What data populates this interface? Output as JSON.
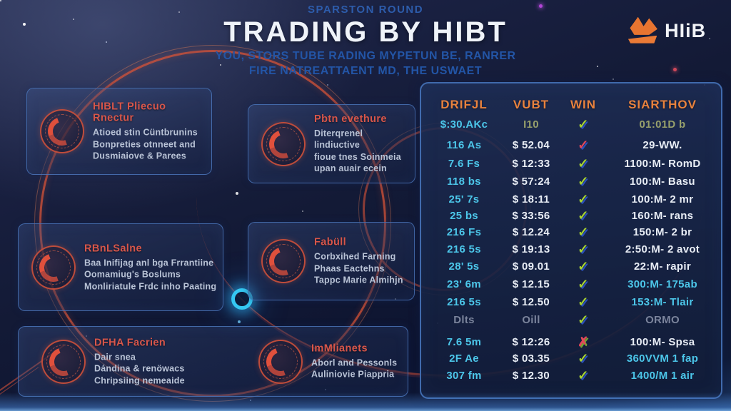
{
  "header": {
    "kicker": "SPARSTON ROUND",
    "title": "TRADING BY HIBT",
    "subtitle1": "YOU, STORS TUBE RADING MYPETUN BE, RANRER",
    "subtitle2": "FIRE NATREATTAENT MD, THE USWAET"
  },
  "logo": {
    "text": "HIiB",
    "dot": "."
  },
  "colors": {
    "accent_orange": "#e8823e",
    "card_title_red": "#d8564a",
    "value_cyan": "#4cc6e9",
    "check_green": "#a8d430",
    "check_red": "#e4475a",
    "panel_border_blue": "#4673b9"
  },
  "cards": [
    {
      "title": "HIBLT Pliecuo Rnectur",
      "lines": [
        "Atioed stin Cüntbrunins",
        "Bonpreties otnneet and",
        "Dusmiaiove & Parees"
      ]
    },
    {
      "title": "Pbtn evethure",
      "lines": [
        "Diterqrenel lindiuctive",
        "fioue tnes Soinmeia",
        "upan auair ecein"
      ]
    },
    {
      "title": "RBnLSalne",
      "lines": [
        "Baa Inifijag anl bga Frrantiine",
        "Oomamiug's Boslums",
        "Monliriatule Frdc inho Paating"
      ]
    },
    {
      "title": "Fabüll",
      "lines": [
        "Corbxihed Farning",
        "Phaas Eactehns",
        "Tappc Marie Almihjn"
      ]
    },
    {
      "title": "DFHA Facrien",
      "lines": [
        "Dair snea",
        "Dándina & renöwacs",
        "Chripsiing nemeaide"
      ]
    },
    {
      "title": "ImMlianets",
      "lines": [
        "Aborl and Pessonls",
        "Auliniovie Piappria"
      ]
    }
  ],
  "table": {
    "headers": [
      "DRIFJL",
      "VUBT",
      "WIN",
      "SIARTHOV"
    ],
    "marks": {
      "check-green": "✓",
      "check-red": "✓",
      "x-red": "✗"
    },
    "rows": [
      {
        "drifjl": "$:30.AKc",
        "vubt": "I10",
        "win": "check-green",
        "siarthov": "01:01D b",
        "c1": "cyan",
        "c2": "olive",
        "c4": "olive"
      },
      {
        "drifjl": "116 As",
        "vubt": "$ 52.04",
        "win": "check-red",
        "siarthov": "29-WW.",
        "c1": "cyan",
        "c2": "white",
        "c4": "white"
      },
      {
        "drifjl": "7.6 Fs",
        "vubt": "$ 12:33",
        "win": "check-green",
        "siarthov": "1100:M- RomD",
        "c1": "cyan",
        "c2": "white",
        "c4": "white"
      },
      {
        "drifjl": "118 bs",
        "vubt": "$ 57:24",
        "win": "check-green",
        "siarthov": "100:M- Basu",
        "c1": "cyan",
        "c2": "white",
        "c4": "white"
      },
      {
        "drifjl": "25' 7s",
        "vubt": "$ 18:11",
        "win": "check-green",
        "siarthov": "100:M- 2 mr",
        "c1": "cyan",
        "c2": "white",
        "c4": "white"
      },
      {
        "drifjl": "25 bs",
        "vubt": "$ 33:56",
        "win": "check-green",
        "siarthov": "160:M- rans",
        "c1": "cyan",
        "c2": "white",
        "c4": "white"
      },
      {
        "drifjl": "216 Fs",
        "vubt": "$ 12.24",
        "win": "check-green",
        "siarthov": "150:M- 2 br",
        "c1": "cyan",
        "c2": "white",
        "c4": "white"
      },
      {
        "drifjl": "216 5s",
        "vubt": "$ 19:13",
        "win": "check-green",
        "siarthov": "2:50:M- 2 avot",
        "c1": "cyan",
        "c2": "white",
        "c4": "white"
      },
      {
        "drifjl": "28' 5s",
        "vubt": "$ 09.01",
        "win": "check-green",
        "siarthov": "22:M- rapir",
        "c1": "cyan",
        "c2": "white",
        "c4": "white"
      },
      {
        "drifjl": "23' 6m",
        "vubt": "$ 12.15",
        "win": "check-green",
        "siarthov": "300:M- 175ab",
        "c1": "cyan",
        "c2": "white",
        "c4": "cyan"
      },
      {
        "drifjl": "216 5s",
        "vubt": "$ 12.50",
        "win": "check-green",
        "siarthov": "153:M- Tlair",
        "c1": "cyan",
        "c2": "white",
        "c4": "cyan"
      },
      {
        "drifjl": "Dlts",
        "vubt": "Oill",
        "win": "check-green",
        "siarthov": "ORMO",
        "c1": "muted",
        "c2": "muted",
        "c4": "muted"
      },
      {
        "drifjl": "7.6 5m",
        "vubt": "$ 12:26",
        "win": "x-red",
        "siarthov": "100:M- Spsa",
        "c1": "cyan",
        "c2": "white",
        "c4": "white"
      },
      {
        "drifjl": "2F Ae",
        "vubt": "$ 03.35",
        "win": "check-green",
        "siarthov": "360VVM 1 fap",
        "c1": "cyan",
        "c2": "white",
        "c4": "cyan"
      },
      {
        "drifjl": "307 fm",
        "vubt": "$ 12.30",
        "win": "check-green",
        "siarthov": "1400/M 1 air",
        "c1": "cyan",
        "c2": "white",
        "c4": "cyan"
      }
    ]
  }
}
